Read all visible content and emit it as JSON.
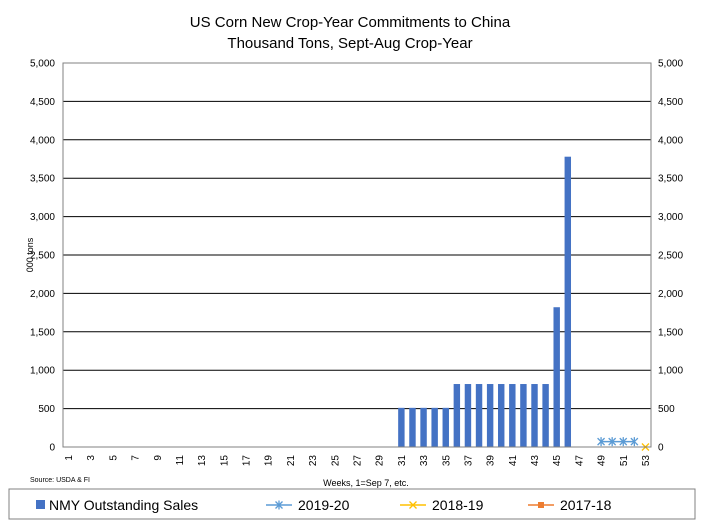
{
  "chart_data": {
    "type": "bar",
    "title": "US Corn New Crop-Year Commitments to China",
    "subtitle": "Thousand Tons, Sept-Aug Crop-Year",
    "ylabel": "000 tons",
    "xlabel": "Weeks, 1=Sep 7, etc.",
    "source": "Source: USDA & FI",
    "ylim": [
      0,
      5000
    ],
    "xlim": [
      1,
      53
    ],
    "y_ticks": [
      "0",
      "500",
      "1,000",
      "1,500",
      "2,000",
      "2,500",
      "3,000",
      "3,500",
      "4,000",
      "4,500",
      "5,000"
    ],
    "y_tick_values": [
      0,
      500,
      1000,
      1500,
      2000,
      2500,
      3000,
      3500,
      4000,
      4500,
      5000
    ],
    "x_ticks": [
      "1",
      "3",
      "5",
      "7",
      "9",
      "11",
      "13",
      "15",
      "17",
      "19",
      "21",
      "23",
      "25",
      "27",
      "29",
      "31",
      "33",
      "35",
      "37",
      "39",
      "41",
      "43",
      "45",
      "47",
      "49",
      "51",
      "53"
    ],
    "grid": true,
    "legend_position": "bottom",
    "series": [
      {
        "name": "NMY Outstanding Sales",
        "kind": "bar",
        "color": "#4472C4",
        "x": [
          31,
          32,
          33,
          34,
          35,
          36,
          37,
          38,
          39,
          40,
          41,
          42,
          43,
          44,
          45,
          46
        ],
        "values": [
          510,
          510,
          510,
          510,
          510,
          820,
          820,
          820,
          820,
          820,
          820,
          820,
          820,
          820,
          1820,
          3780
        ]
      },
      {
        "name": "2019-20",
        "kind": "line",
        "marker": "asterisk",
        "color": "#5B9BD5",
        "x": [
          49,
          50,
          51,
          52
        ],
        "values": [
          70,
          70,
          70,
          70
        ]
      },
      {
        "name": "2018-19",
        "kind": "line",
        "marker": "x",
        "color": "#FFC000",
        "x": [
          53
        ],
        "values": [
          0
        ]
      },
      {
        "name": "2017-18",
        "kind": "line",
        "marker": "square",
        "color": "#ED7D31",
        "x": [],
        "values": []
      }
    ]
  }
}
